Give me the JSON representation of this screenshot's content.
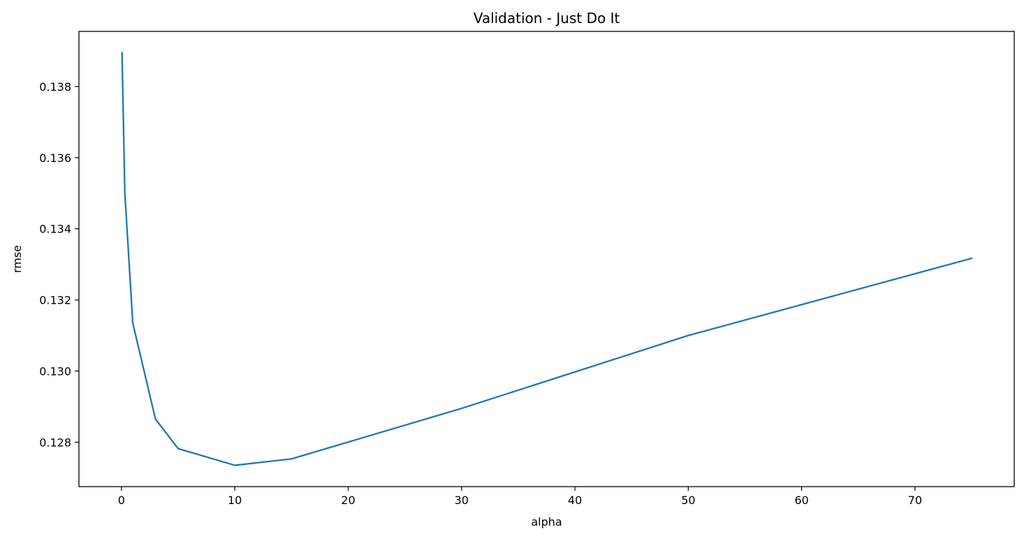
{
  "chart_data": {
    "type": "line",
    "title": "Validation - Just Do It",
    "xlabel": "alpha",
    "ylabel": "rmse",
    "xlim": [
      -3.75,
      78.75
    ],
    "ylim": [
      0.12675,
      0.13955
    ],
    "xticks": [
      0,
      10,
      20,
      30,
      40,
      50,
      60,
      70
    ],
    "yticks": [
      0.128,
      0.13,
      0.132,
      0.134,
      0.136,
      0.138
    ],
    "xtick_labels": [
      "0",
      "10",
      "20",
      "30",
      "40",
      "50",
      "60",
      "70"
    ],
    "ytick_labels": [
      "0.128",
      "0.130",
      "0.132",
      "0.134",
      "0.136",
      "0.138"
    ],
    "grid": false,
    "series": [
      {
        "color": "#1f77b4",
        "x": [
          0.05,
          0.3,
          1,
          3,
          5,
          10,
          15,
          30,
          50,
          75
        ],
        "y": [
          0.13895,
          0.135,
          0.13135,
          0.12865,
          0.12782,
          0.12735,
          0.12753,
          0.12895,
          0.131,
          0.13317
        ]
      }
    ]
  }
}
